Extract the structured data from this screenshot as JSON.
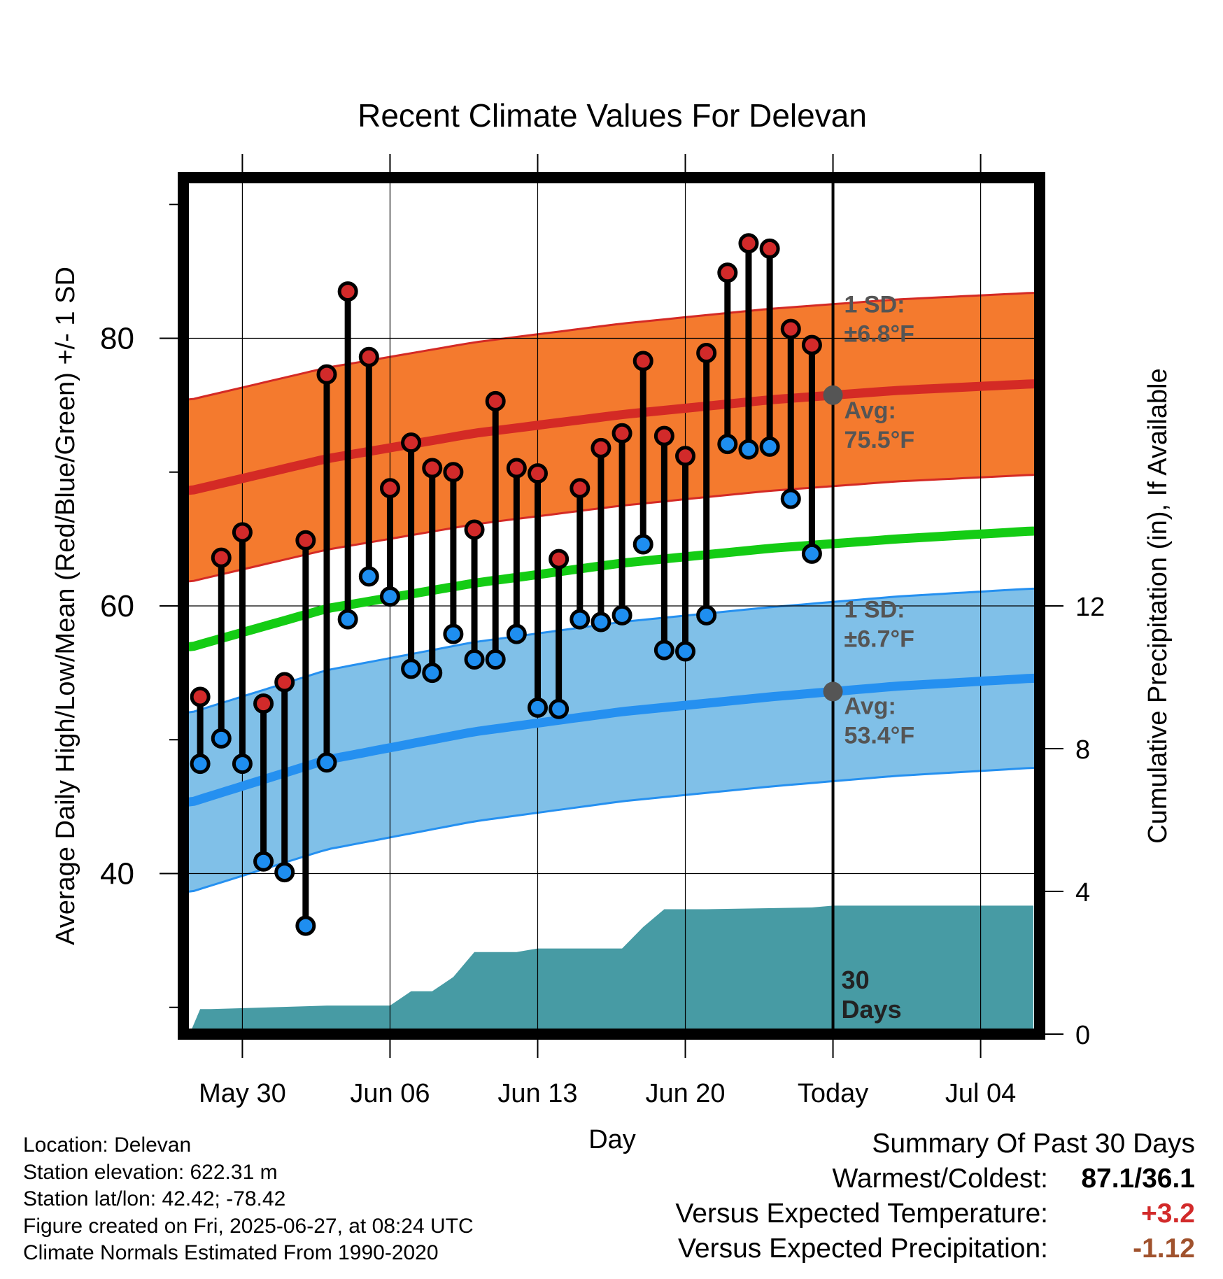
{
  "chart_data": {
    "type": "line",
    "title": "Recent Climate Values For Delevan",
    "xlabel": "Day",
    "ylabel": "Average Daily High/Low/Mean (Red/Blue/Green) +/- 1 SD",
    "y2label": "Cumulative Precipitation (in), If Available",
    "x_tick_labels": [
      "May 30",
      "Jun 06",
      "Jun 13",
      "Jun 20",
      "Today",
      "Jul 04"
    ],
    "x_tick_days": [
      3,
      10,
      17,
      24,
      31,
      38
    ],
    "xlim": [
      0.2,
      40.8
    ],
    "ylim": [
      28,
      92
    ],
    "y_ticks": [
      40,
      60,
      80
    ],
    "y2lim": [
      0,
      24
    ],
    "y2_ticks": [
      0,
      4,
      8,
      12
    ],
    "grid": true,
    "today_day": 31,
    "today_label": "30\nDays",
    "observed": {
      "day": [
        1,
        2,
        3,
        4,
        5,
        6,
        7,
        8,
        9,
        10,
        11,
        12,
        13,
        14,
        15,
        16,
        17,
        18,
        19,
        20,
        21,
        22,
        23,
        24,
        25,
        26,
        27,
        28,
        29,
        30
      ],
      "high": [
        53.2,
        63.6,
        65.5,
        52.7,
        54.3,
        64.9,
        77.3,
        83.5,
        78.6,
        68.8,
        72.2,
        70.3,
        70.0,
        65.7,
        75.3,
        70.3,
        69.9,
        63.5,
        68.8,
        71.8,
        72.9,
        78.3,
        72.7,
        71.2,
        78.9,
        84.9,
        87.1,
        86.7,
        80.7,
        79.5
      ],
      "low": [
        48.2,
        50.1,
        48.2,
        40.9,
        40.1,
        36.1,
        48.3,
        59.0,
        62.2,
        60.7,
        55.3,
        55.0,
        57.9,
        56.0,
        56.0,
        57.9,
        52.4,
        52.3,
        59.0,
        58.8,
        59.3,
        64.6,
        56.7,
        56.6,
        59.3,
        72.1,
        71.7,
        71.9,
        68.0,
        63.9
      ]
    },
    "normal_high": {
      "day": [
        0.5,
        7,
        14,
        21,
        28,
        34,
        40.5
      ],
      "mean": [
        68.6,
        71.0,
        72.9,
        74.3,
        75.4,
        76.1,
        76.6
      ],
      "sd": 6.8
    },
    "normal_low": {
      "day": [
        0.5,
        7,
        14,
        21,
        28,
        34,
        40.5
      ],
      "mean": [
        45.3,
        48.5,
        50.6,
        52.1,
        53.2,
        54.0,
        54.6
      ],
      "sd": 6.7
    },
    "normal_mean": {
      "day": [
        0.5,
        7,
        14,
        21,
        28,
        34,
        40.5
      ],
      "mean": [
        56.9,
        59.8,
        61.7,
        63.2,
        64.3,
        65.0,
        65.6
      ]
    },
    "precip_cumulative": {
      "day": [
        0.5,
        1,
        1.5,
        7,
        8,
        9,
        10,
        11,
        12,
        13,
        14,
        15,
        16,
        17,
        18,
        19,
        20,
        21,
        22,
        23,
        24,
        25,
        30,
        31,
        40.5
      ],
      "value": [
        0,
        0.7,
        0.7,
        0.8,
        0.8,
        0.8,
        0.8,
        1.2,
        1.2,
        1.6,
        2.3,
        2.3,
        2.3,
        2.4,
        2.4,
        2.4,
        2.4,
        2.4,
        3.0,
        3.5,
        3.5,
        3.5,
        3.55,
        3.6,
        3.6
      ]
    },
    "annotations": {
      "high_sd": "1 SD:",
      "high_sd_value": "±6.8°F",
      "high_avg": "Avg:",
      "high_avg_value": "75.5°F",
      "low_sd": "1 SD:",
      "low_sd_value": "±6.7°F",
      "low_avg": "Avg:",
      "low_avg_value": "53.4°F"
    },
    "colors": {
      "high_band": "#F47A2E",
      "high_line": "#D42A25",
      "low_band": "#80C0E8",
      "low_line": "#2590F0",
      "mean_line": "#14CC14",
      "precip": "#479BA4",
      "high_dot": "#D22A2A",
      "low_dot": "#1E8EF0",
      "annotation": "#555555"
    }
  },
  "info": {
    "location": "Location: Delevan",
    "elevation": "Station elevation: 622.31 m",
    "latlon": "Station lat/lon: 42.42; -78.42",
    "created": "Figure created on Fri, 2025-06-27, at 08:24 UTC",
    "normals": "Climate Normals Estimated From 1990-2020"
  },
  "summary": {
    "title": "Summary Of Past 30 Days",
    "warmest_coldest_label": "Warmest/Coldest:",
    "warmest": "87.1",
    "slash": "/",
    "coldest": "36.1",
    "temp_label": "Versus Expected Temperature:",
    "temp_value": "+3.2",
    "temp_color": "#D22A2A",
    "precip_label": "Versus Expected Precipitation:",
    "precip_value": "-1.12",
    "precip_color": "#A0522D"
  }
}
